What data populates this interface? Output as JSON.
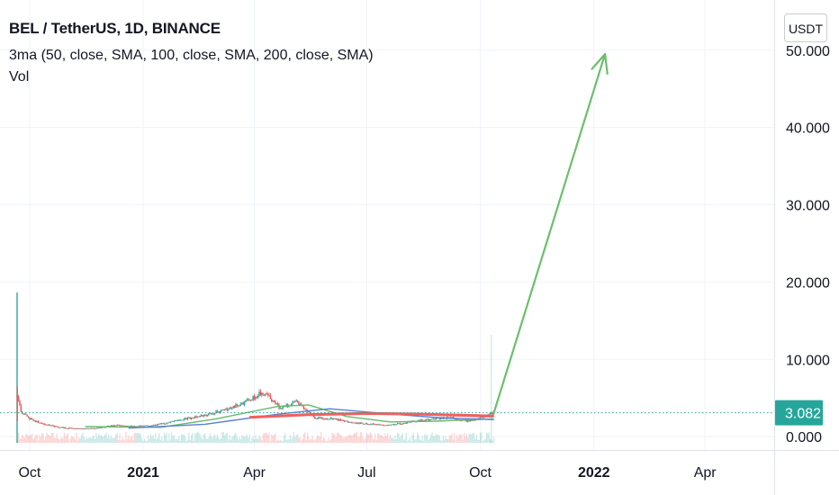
{
  "legend": {
    "title": "BEL / TetherUS, 1D, BINANCE",
    "indicator": "3ma (50, close, SMA, 100, close, SMA, 200, close, SMA)",
    "volume": "Vol"
  },
  "currency_button": "USDT",
  "colors": {
    "up": "#26a69a",
    "down": "#ef5350",
    "ma50": "#66bb6a",
    "ma100": "#5b7fd8",
    "ma200": "#f06060",
    "arrow": "#6cbf6c",
    "price_line": "#26a69a",
    "grid": "#f0f3fa"
  },
  "last_price_label": "3.082",
  "chart_data": {
    "type": "candlestick",
    "symbol": "BEL / TetherUS",
    "interval": "1D",
    "exchange": "BINANCE",
    "y_axis": {
      "ticks": [
        "50.000",
        "40.000",
        "30.000",
        "20.000",
        "10.000",
        "0.000"
      ],
      "tick_values": [
        50,
        40,
        30,
        20,
        10,
        0
      ],
      "range": [
        -0.8,
        56.5
      ]
    },
    "x_axis": {
      "ticks": [
        "Oct",
        "2021",
        "Apr",
        "Jul",
        "Oct",
        "2022",
        "Apr"
      ],
      "tick_dates": [
        "2020-10-01",
        "2021-01-01",
        "2021-04-01",
        "2021-07-01",
        "2021-10-01",
        "2022-01-01",
        "2022-04-01"
      ],
      "bold": [
        false,
        true,
        false,
        false,
        false,
        true,
        false
      ],
      "range": [
        "2020-09-07",
        "2022-05-27"
      ]
    },
    "last_price": 3.082,
    "price_path": [
      [
        "2020-09-21",
        5.5
      ],
      [
        "2020-09-24",
        3.2
      ],
      [
        "2020-09-30",
        2.4
      ],
      [
        "2020-10-10",
        1.7
      ],
      [
        "2020-10-25",
        1.2
      ],
      [
        "2020-11-10",
        1.0
      ],
      [
        "2020-11-25",
        1.1
      ],
      [
        "2020-12-10",
        1.5
      ],
      [
        "2020-12-25",
        1.3
      ],
      [
        "2021-01-10",
        1.5
      ],
      [
        "2021-01-25",
        1.9
      ],
      [
        "2021-02-10",
        2.5
      ],
      [
        "2021-02-25",
        3.0
      ],
      [
        "2021-03-10",
        3.5
      ],
      [
        "2021-03-25",
        4.5
      ],
      [
        "2021-04-05",
        5.5
      ],
      [
        "2021-04-12",
        5.2
      ],
      [
        "2021-04-22",
        3.6
      ],
      [
        "2021-05-05",
        4.6
      ],
      [
        "2021-05-12",
        3.6
      ],
      [
        "2021-05-20",
        2.4
      ],
      [
        "2021-06-05",
        2.3
      ],
      [
        "2021-06-20",
        1.8
      ],
      [
        "2021-07-05",
        1.6
      ],
      [
        "2021-07-20",
        1.5
      ],
      [
        "2021-08-05",
        1.9
      ],
      [
        "2021-08-20",
        2.2
      ],
      [
        "2021-09-05",
        2.5
      ],
      [
        "2021-09-20",
        2.0
      ],
      [
        "2021-10-05",
        2.6
      ],
      [
        "2021-10-12",
        3.082
      ]
    ],
    "moving_averages": [
      {
        "name": "MA 50",
        "points": [
          [
            "2020-11-15",
            1.3
          ],
          [
            "2021-01-15",
            1.2
          ],
          [
            "2021-03-01",
            2.3
          ],
          [
            "2021-04-20",
            3.9
          ],
          [
            "2021-05-15",
            4.1
          ],
          [
            "2021-06-15",
            2.6
          ],
          [
            "2021-07-20",
            1.9
          ],
          [
            "2021-08-25",
            2.0
          ],
          [
            "2021-10-12",
            2.3
          ]
        ]
      },
      {
        "name": "MA 100",
        "points": [
          [
            "2020-12-20",
            1.1
          ],
          [
            "2021-02-20",
            1.6
          ],
          [
            "2021-04-20",
            2.9
          ],
          [
            "2021-06-01",
            3.6
          ],
          [
            "2021-07-15",
            3.0
          ],
          [
            "2021-09-01",
            2.4
          ],
          [
            "2021-10-12",
            2.2
          ]
        ]
      },
      {
        "name": "MA 200",
        "points": [
          [
            "2021-03-28",
            2.5
          ],
          [
            "2021-05-15",
            2.85
          ],
          [
            "2021-07-01",
            3.0
          ],
          [
            "2021-08-15",
            2.9
          ],
          [
            "2021-10-12",
            2.65
          ]
        ]
      }
    ],
    "annotation_arrow": {
      "from": [
        "2021-10-12",
        3.1
      ],
      "to": [
        "2022-01-10",
        49.5
      ]
    },
    "volume": {
      "spike": {
        "date": "2020-09-21",
        "height_fraction": 1.0
      },
      "spike2": {
        "date": "2021-10-10",
        "height_fraction": 0.7
      }
    }
  }
}
